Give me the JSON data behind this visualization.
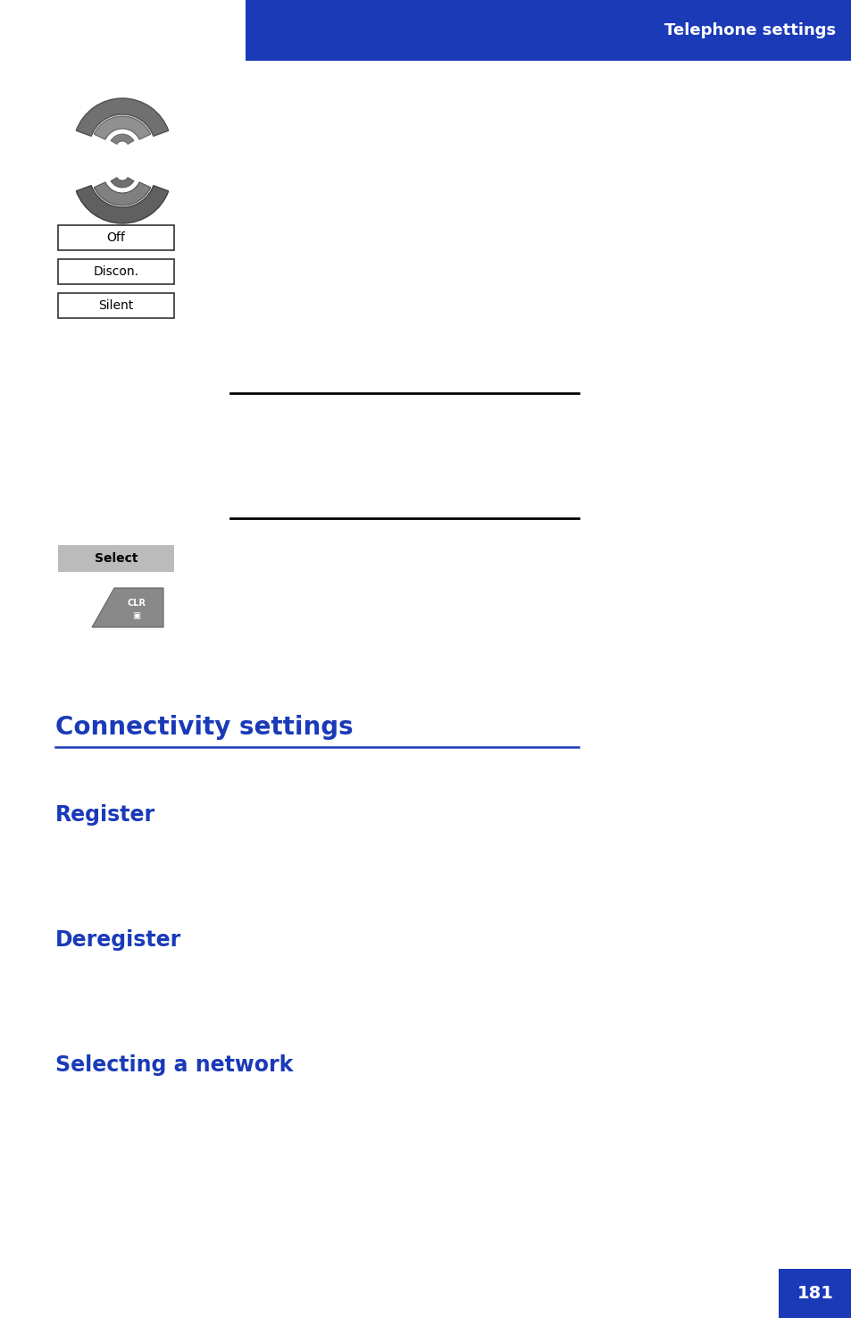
{
  "bg_color": "#ffffff",
  "header_bg": "#1a3ab8",
  "header_text": "Telephone settings",
  "header_text_color": "#ffffff",
  "blue_color": "#1a3ab8",
  "button_labels": [
    "Off",
    "Discon.",
    "Silent"
  ],
  "page_num": "181"
}
